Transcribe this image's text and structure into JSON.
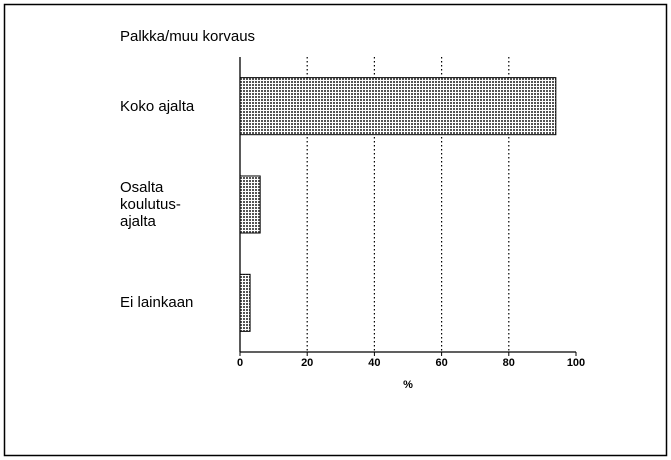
{
  "chart_data": {
    "type": "hbar",
    "title": "Palkka/muu korvaus",
    "categories": [
      "Koko ajalta",
      "Osalta\nkoulutus-\najalta",
      "Ei lainkaan"
    ],
    "values": [
      94,
      6,
      3
    ],
    "color": "#555555",
    "x_label": "%",
    "xlim": [
      0,
      100
    ],
    "xticks": [
      0,
      20,
      40,
      60,
      80,
      100
    ],
    "grid": true
  }
}
